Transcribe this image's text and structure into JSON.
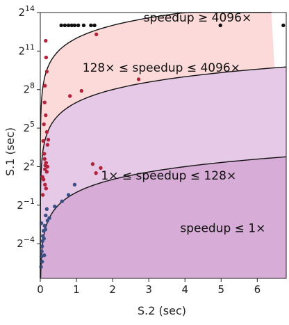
{
  "chart_data": {
    "type": "scatter",
    "xlabel": "S.2 (sec)",
    "ylabel": "S.1 (sec)",
    "xlim": [
      0,
      6.8
    ],
    "ylim_log2": [
      -6.7,
      14
    ],
    "y_scale": "log2",
    "grid": false,
    "x_ticks": [
      {
        "value": 0,
        "label": "0"
      },
      {
        "value": 1,
        "label": "1"
      },
      {
        "value": 2,
        "label": "2"
      },
      {
        "value": 3,
        "label": "3"
      },
      {
        "value": 4,
        "label": "4"
      },
      {
        "value": 5,
        "label": "5"
      },
      {
        "value": 6,
        "label": "6"
      }
    ],
    "y_ticks": [
      {
        "exp": 14,
        "base": "2",
        "sup": "14"
      },
      {
        "exp": 11,
        "base": "2",
        "sup": "11"
      },
      {
        "exp": 8,
        "base": "2",
        "sup": "8"
      },
      {
        "exp": 5,
        "base": "2",
        "sup": "5"
      },
      {
        "exp": 2,
        "base": "2",
        "sup": "2"
      },
      {
        "exp": -1,
        "base": "2",
        "sup": "−1"
      },
      {
        "exp": -4,
        "base": "2",
        "sup": "−4"
      }
    ],
    "regions": [
      {
        "label": "speedup ≥ 4096×",
        "color": "#ffffff",
        "from_speedup": 4096,
        "to_speedup": null,
        "label_x": 4.35,
        "label_ylog": 13.3
      },
      {
        "label": "128× ≤ speedup ≤ 4096×",
        "color": "#fcdada",
        "from_speedup": 128,
        "to_speedup": 4096,
        "label_x": 3.35,
        "label_ylog": 9.4
      },
      {
        "label": "1× ≤ speedup ≤ 128×",
        "color": "#e6c9e6",
        "from_speedup": 1,
        "to_speedup": 128,
        "label_x": 3.55,
        "label_ylog": 1.0
      },
      {
        "label": "speedup ≤ 1×",
        "color": "#d7acd7",
        "from_speedup": 0,
        "to_speedup": 1,
        "label_x": 5.05,
        "label_ylog": -3.1
      }
    ],
    "boundary_speedups": [
      1,
      128,
      4096
    ],
    "series": [
      {
        "color": "#111111",
        "points": [
          [
            0.58,
            13.0
          ],
          [
            0.68,
            13.0
          ],
          [
            0.78,
            13.0
          ],
          [
            0.87,
            13.0
          ],
          [
            0.95,
            13.0
          ],
          [
            1.05,
            13.0
          ],
          [
            1.2,
            13.0
          ],
          [
            1.4,
            13.0
          ],
          [
            1.5,
            13.0
          ],
          [
            4.98,
            13.0
          ],
          [
            6.72,
            13.0
          ]
        ]
      },
      {
        "color": "#b0243b",
        "points": [
          [
            0.15,
            11.8
          ],
          [
            0.16,
            10.5
          ],
          [
            0.18,
            9.4
          ],
          [
            0.13,
            8.3
          ],
          [
            0.12,
            7.0
          ],
          [
            0.15,
            6.0
          ],
          [
            0.1,
            5.3
          ],
          [
            0.18,
            4.7
          ],
          [
            0.22,
            4.1
          ],
          [
            0.08,
            4.0
          ],
          [
            0.2,
            3.7
          ],
          [
            0.11,
            3.0
          ],
          [
            0.12,
            2.6
          ],
          [
            0.16,
            2.3
          ],
          [
            0.14,
            2.1
          ],
          [
            0.2,
            2.0
          ],
          [
            0.13,
            1.8
          ],
          [
            0.18,
            1.6
          ],
          [
            0.06,
            1.2
          ],
          [
            0.09,
            1.0
          ],
          [
            0.13,
            0.6
          ],
          [
            0.16,
            0.3
          ],
          [
            0.07,
            -0.2
          ],
          [
            1.55,
            12.3
          ],
          [
            1.14,
            7.9
          ],
          [
            0.82,
            7.5
          ],
          [
            2.72,
            8.8
          ],
          [
            1.45,
            2.2
          ],
          [
            1.67,
            1.9
          ],
          [
            1.54,
            1.5
          ]
        ]
      },
      {
        "color": "#3a4f84",
        "points": [
          [
            0.95,
            0.6
          ],
          [
            0.78,
            -0.2
          ],
          [
            0.6,
            -0.7
          ],
          [
            0.4,
            -1.1
          ],
          [
            0.18,
            -1.3
          ],
          [
            0.15,
            -1.8
          ],
          [
            0.2,
            -2.2
          ],
          [
            0.12,
            -2.6
          ],
          [
            0.09,
            -3.0
          ],
          [
            0.07,
            -3.4
          ],
          [
            0.06,
            -3.8
          ],
          [
            0.05,
            -4.2
          ],
          [
            0.04,
            -4.6
          ],
          [
            0.03,
            -5.0
          ],
          [
            0.05,
            -5.4
          ],
          [
            0.1,
            -3.6
          ],
          [
            0.14,
            -2.9
          ],
          [
            0.02,
            -5.8
          ],
          [
            0.03,
            -2.4
          ],
          [
            0.25,
            -2.0
          ],
          [
            0.11,
            -4.9
          ]
        ]
      }
    ]
  }
}
